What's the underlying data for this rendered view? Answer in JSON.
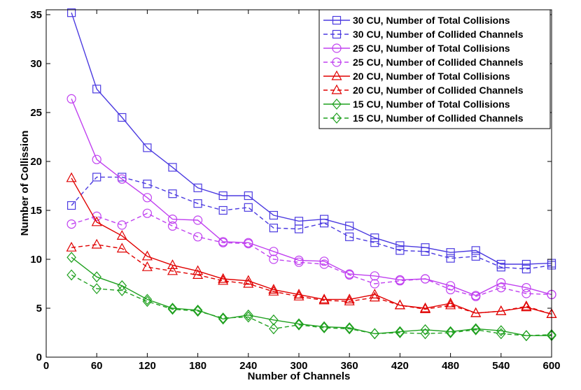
{
  "chart_data": {
    "type": "line",
    "title": "",
    "xlabel": "Number of Channels",
    "ylabel": "Number of Collission",
    "xlim": [
      0,
      600
    ],
    "ylim": [
      0,
      35.5
    ],
    "xticks": [
      0,
      60,
      120,
      180,
      240,
      300,
      360,
      420,
      480,
      540,
      600
    ],
    "yticks": [
      0,
      5,
      10,
      15,
      20,
      25,
      30,
      35
    ],
    "grid": false,
    "legend_position": "top-right",
    "x": [
      30,
      60,
      90,
      120,
      150,
      180,
      210,
      240,
      270,
      300,
      330,
      360,
      390,
      420,
      450,
      480,
      510,
      540,
      570,
      600
    ],
    "series": [
      {
        "name": "30 CU, Number of Total Collisions",
        "color": "#4b3ae0",
        "dash": "solid",
        "marker": "square",
        "values": [
          35.2,
          27.4,
          24.5,
          21.4,
          19.4,
          17.3,
          16.5,
          16.5,
          14.5,
          13.9,
          14.1,
          13.4,
          12.2,
          11.4,
          11.2,
          10.7,
          10.9,
          9.5,
          9.5,
          9.6
        ]
      },
      {
        "name": "30 CU, Number of Collided Channels",
        "color": "#4b3ae0",
        "dash": "dashed",
        "marker": "square",
        "values": [
          15.5,
          18.4,
          18.4,
          17.7,
          16.7,
          15.7,
          15.0,
          15.3,
          13.2,
          13.1,
          13.7,
          12.3,
          11.7,
          10.9,
          10.8,
          10.1,
          10.3,
          9.2,
          9.0,
          9.4
        ]
      },
      {
        "name": "25 CU, Number of Total Collisions",
        "color": "#c040f0",
        "dash": "solid",
        "marker": "circle",
        "values": [
          26.4,
          20.2,
          18.2,
          16.3,
          14.1,
          14.0,
          11.8,
          11.7,
          10.8,
          9.9,
          9.8,
          8.5,
          8.3,
          7.9,
          8.0,
          7.3,
          6.3,
          7.6,
          7.1,
          6.4
        ]
      },
      {
        "name": "25 CU, Number of Collided Channels",
        "color": "#c040f0",
        "dash": "dashed",
        "marker": "circle",
        "values": [
          13.6,
          14.4,
          13.5,
          14.7,
          13.4,
          12.3,
          11.7,
          11.6,
          10.0,
          9.7,
          9.5,
          8.4,
          7.5,
          7.8,
          8.0,
          6.9,
          6.2,
          7.1,
          6.5,
          6.4
        ]
      },
      {
        "name": "20 CU, Number of Total Collisions",
        "color": "#e00000",
        "dash": "solid",
        "marker": "triangle",
        "values": [
          18.3,
          13.8,
          12.4,
          10.3,
          9.4,
          8.8,
          8.0,
          7.8,
          6.9,
          6.4,
          5.9,
          5.9,
          6.4,
          5.3,
          5.0,
          5.5,
          4.5,
          4.7,
          5.1,
          4.4
        ]
      },
      {
        "name": "20 CU, Number of Collided Channels",
        "color": "#e00000",
        "dash": "dashed",
        "marker": "triangle",
        "values": [
          11.2,
          11.5,
          11.1,
          9.2,
          8.8,
          8.4,
          7.8,
          7.5,
          6.7,
          6.2,
          5.8,
          5.7,
          6.1,
          5.3,
          4.9,
          5.3,
          4.5,
          4.7,
          5.2,
          4.4
        ]
      },
      {
        "name": "15 CU, Number of Total Collisions",
        "color": "#1fa01f",
        "dash": "solid",
        "marker": "diamond",
        "values": [
          10.2,
          8.2,
          7.3,
          5.9,
          5.0,
          4.8,
          3.9,
          4.3,
          3.8,
          3.4,
          3.1,
          3.0,
          2.4,
          2.6,
          2.8,
          2.6,
          2.9,
          2.7,
          2.2,
          2.2
        ]
      },
      {
        "name": "15 CU, Number of Collided Channels",
        "color": "#1fa01f",
        "dash": "dashed",
        "marker": "diamond",
        "values": [
          8.4,
          7.0,
          6.8,
          5.7,
          4.9,
          4.7,
          4.0,
          4.1,
          2.9,
          3.3,
          3.0,
          2.9,
          2.4,
          2.5,
          2.4,
          2.5,
          2.8,
          2.4,
          2.2,
          2.3
        ]
      }
    ]
  }
}
